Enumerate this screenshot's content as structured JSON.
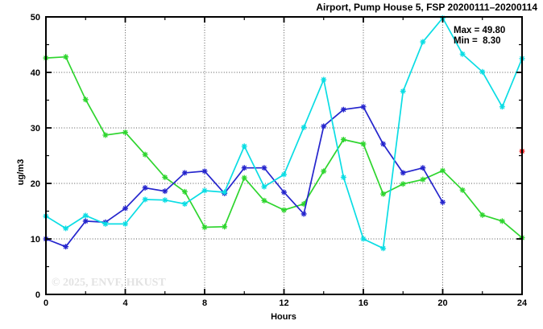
{
  "title": "Airport, Pump House 5, FSP 20200111–20200114",
  "annotation": {
    "max_label": "Max = 49.80",
    "min_label": "Min =  8.30"
  },
  "watermark": "© 2025, ENVF, HKUST",
  "chart_data": {
    "type": "line",
    "title": "Airport, Pump House 5, FSP 20200111–20200114",
    "xlabel": "Hours",
    "ylabel": "ug/m3",
    "xlim": [
      0,
      24
    ],
    "ylim": [
      0,
      50
    ],
    "grid": true,
    "legend_position": "none",
    "max_value": 49.8,
    "min_value": 8.3,
    "x_major_ticks": [
      0,
      4,
      8,
      12,
      16,
      20,
      24
    ],
    "x_minor_ticks": [
      2,
      6,
      10,
      14,
      18,
      22
    ],
    "y_major_ticks": [
      0,
      10,
      20,
      30,
      40,
      50
    ],
    "y_minor_ticks": [
      5,
      15,
      25,
      35,
      45
    ],
    "grid_x": [
      4,
      8,
      12,
      16,
      20
    ],
    "grid_y": [
      10,
      20,
      30,
      40
    ],
    "marker": "asterisk",
    "series": [
      {
        "name": "green-line",
        "color": "#2ed52e",
        "x": [
          0,
          1,
          2,
          3,
          4,
          5,
          6,
          7,
          8,
          9,
          10,
          11,
          12,
          13,
          14,
          15,
          16,
          17,
          18,
          19,
          20,
          21,
          22,
          23,
          24
        ],
        "y": [
          42.6,
          42.8,
          35.1,
          28.7,
          29.2,
          25.2,
          21.1,
          18.5,
          12.1,
          12.2,
          21.0,
          16.9,
          15.2,
          16.3,
          22.2,
          27.9,
          27.1,
          18.1,
          19.9,
          20.7,
          22.3,
          18.8,
          14.3,
          13.2,
          10.2
        ]
      },
      {
        "name": "blue-line",
        "color": "#2525cd",
        "x": [
          0,
          1,
          2,
          3,
          4,
          5,
          6,
          7,
          8,
          9,
          10,
          11,
          12,
          13,
          14,
          15,
          16,
          17,
          18,
          19,
          20
        ],
        "y": [
          10.0,
          8.6,
          13.2,
          13.0,
          15.5,
          19.2,
          18.6,
          21.9,
          22.2,
          18.2,
          22.8,
          22.8,
          18.4,
          14.5,
          30.3,
          33.3,
          33.8,
          27.1,
          21.9,
          22.8,
          16.6
        ]
      },
      {
        "name": "cyan-line",
        "color": "#0adde4",
        "x": [
          0,
          1,
          2,
          3,
          4,
          5,
          6,
          7,
          8,
          9,
          10,
          11,
          12,
          13,
          14,
          15,
          16,
          17,
          18,
          19,
          20,
          21,
          22,
          23,
          24
        ],
        "y": [
          14.1,
          11.9,
          14.2,
          12.7,
          12.7,
          17.1,
          17.0,
          16.3,
          18.7,
          18.4,
          26.7,
          19.4,
          21.6,
          30.1,
          38.7,
          21.1,
          10.0,
          8.3,
          36.6,
          45.5,
          49.8,
          43.3,
          40.1,
          33.8,
          42.5
        ]
      },
      {
        "name": "red-point",
        "color": "#f01515",
        "x": [
          24
        ],
        "y": [
          25.8
        ]
      }
    ]
  }
}
